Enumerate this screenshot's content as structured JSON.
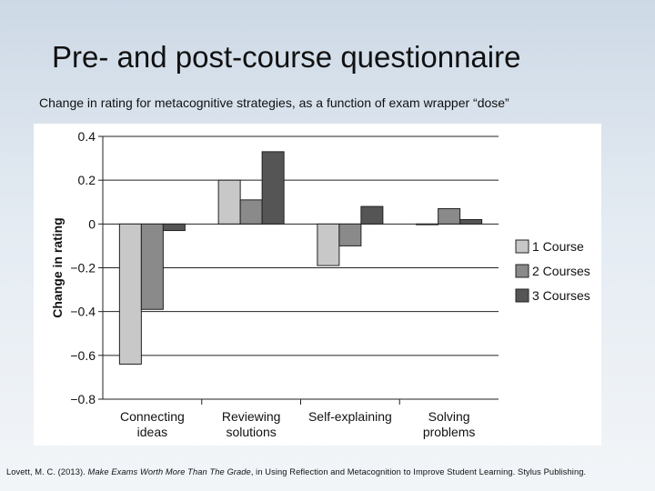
{
  "slide": {
    "title": "Pre- and post-course questionnaire",
    "subtitle": "Change in rating for metacognitive strategies, as a function of exam wrapper “dose”"
  },
  "citation": {
    "prefix": "Lovett, M. C. (2013). ",
    "title": "Make Exams Worth More Than The Grade",
    "suffix": ", in Using Reflection and Metacognition to Improve Student Learning. Stylus Publishing."
  },
  "chart_data": {
    "type": "bar",
    "ylabel": "Change in rating",
    "xlabel": "",
    "ylim": [
      -0.8,
      0.4
    ],
    "yticks": [
      0.4,
      0.2,
      0,
      -0.2,
      -0.4,
      -0.6,
      -0.8
    ],
    "ytick_labels": [
      "0.4",
      "0.2",
      "0",
      "−0.2",
      "−0.4",
      "−0.6",
      "−0.8"
    ],
    "grid": true,
    "legend_position": "right",
    "categories": [
      [
        "Connecting",
        "ideas"
      ],
      [
        "Reviewing",
        "solutions"
      ],
      [
        "Self-explaining"
      ],
      [
        "Solving",
        "problems"
      ]
    ],
    "series": [
      {
        "name": "1 Course",
        "color": "#c8c8c8",
        "values": [
          -0.64,
          0.2,
          -0.19,
          0.0
        ]
      },
      {
        "name": "2 Courses",
        "color": "#8a8a8a",
        "values": [
          -0.39,
          0.11,
          -0.1,
          0.07
        ]
      },
      {
        "name": "3 Courses",
        "color": "#555555",
        "values": [
          -0.03,
          0.33,
          0.08,
          0.02
        ]
      }
    ]
  }
}
